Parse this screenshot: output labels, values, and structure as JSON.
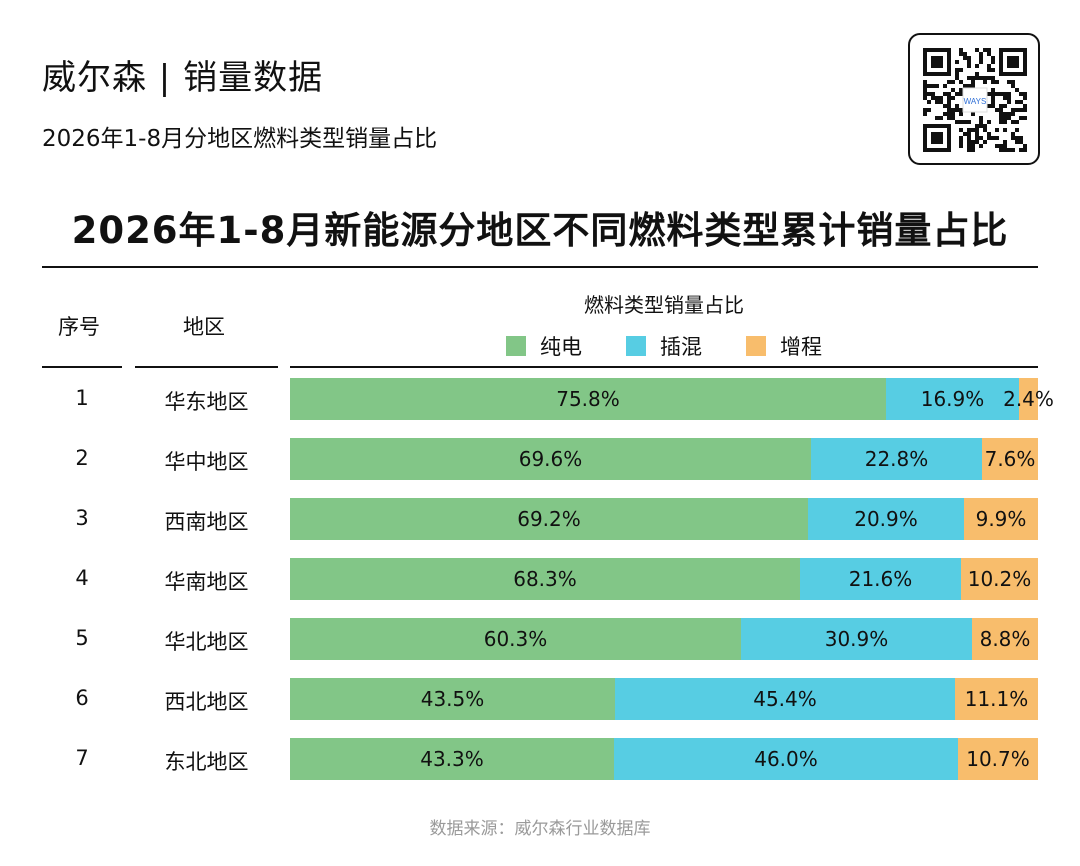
{
  "header": {
    "brand": "威尔森 | 销量数据",
    "subtitle": "2026年1-8月分地区燃料类型销量占比",
    "qr_label": "WAYS"
  },
  "title": "2026年1-8月新能源分地区不同燃料类型累计销量占比",
  "columns": {
    "index": "序号",
    "region": "地区",
    "chart": "燃料类型销量占比"
  },
  "colors": {
    "bev": "#82c687",
    "phev": "#57cde3",
    "erev": "#f8bd6c"
  },
  "chart_data": {
    "type": "bar",
    "orientation": "horizontal",
    "stacked": "percent",
    "title": "燃料类型销量占比",
    "categories": [
      "华东地区",
      "华中地区",
      "西南地区",
      "华南地区",
      "华北地区",
      "西北地区",
      "东北地区"
    ],
    "index": [
      "1",
      "2",
      "3",
      "4",
      "5",
      "6",
      "7"
    ],
    "unit": "%",
    "series": [
      {
        "name": "纯电",
        "values": [
          75.8,
          69.6,
          69.2,
          68.3,
          60.3,
          43.5,
          43.3
        ],
        "labels": [
          "75.8%",
          "69.6%",
          "69.2%",
          "68.3%",
          "60.3%",
          "43.5%",
          "43.3%"
        ]
      },
      {
        "name": "插混",
        "values": [
          16.9,
          22.8,
          20.9,
          21.6,
          30.9,
          45.4,
          46.0
        ],
        "labels": [
          "16.9%",
          "22.8%",
          "20.9%",
          "21.6%",
          "30.9%",
          "45.4%",
          "46.0%"
        ]
      },
      {
        "name": "增程",
        "values": [
          2.4,
          7.6,
          9.9,
          10.2,
          8.8,
          11.1,
          10.7
        ],
        "labels": [
          "2.4%",
          "7.6%",
          "9.9%",
          "10.2%",
          "8.8%",
          "11.1%",
          "10.7%"
        ]
      }
    ]
  },
  "footer": {
    "source": "数据来源：威尔森行业数据库"
  }
}
